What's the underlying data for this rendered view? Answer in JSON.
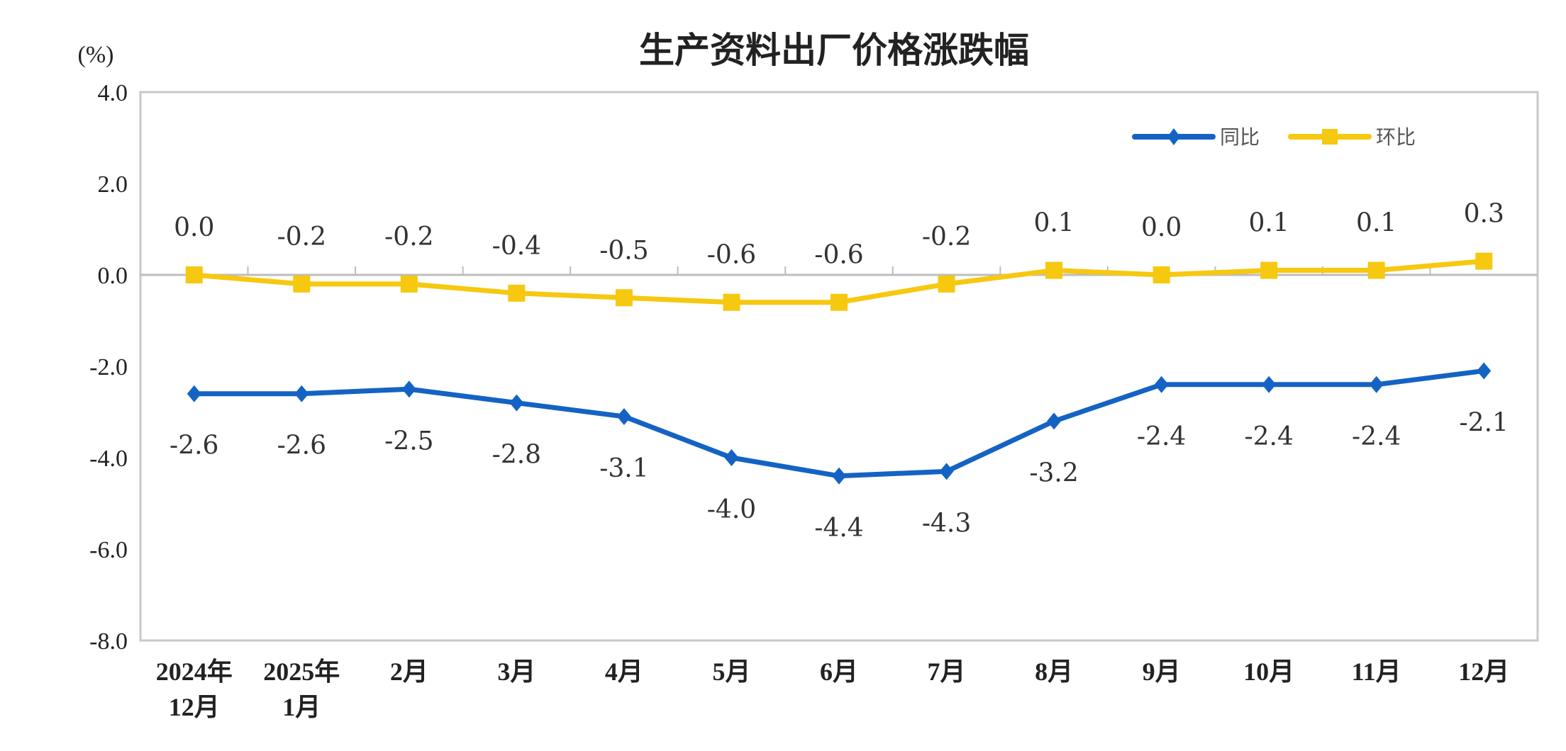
{
  "chart_data": {
    "type": "line",
    "title": "生产资料出厂价格涨跌幅",
    "ylabel": "(%)",
    "ylim": [
      -8.0,
      4.0
    ],
    "yticks": [
      "4.0",
      "2.0",
      "0.0",
      "-2.0",
      "-4.0",
      "-6.0",
      "-8.0"
    ],
    "ytick_values": [
      4,
      2,
      0,
      -2,
      -4,
      -6,
      -8
    ],
    "categories": [
      [
        "2024年",
        "12月"
      ],
      [
        "2025年",
        "1月"
      ],
      [
        "2月"
      ],
      [
        "3月"
      ],
      [
        "4月"
      ],
      [
        "5月"
      ],
      [
        "6月"
      ],
      [
        "7月"
      ],
      [
        "8月"
      ],
      [
        "9月"
      ],
      [
        "10月"
      ],
      [
        "11月"
      ],
      [
        "12月"
      ]
    ],
    "grid": false,
    "legend_position": "top-right",
    "series": [
      {
        "name": "同比",
        "color": "#1463c4",
        "marker": "diamond",
        "values": [
          -2.6,
          -2.6,
          -2.5,
          -2.8,
          -3.1,
          -4.0,
          -4.4,
          -4.3,
          -3.2,
          -2.4,
          -2.4,
          -2.4,
          -2.1
        ],
        "labels": [
          "-2.6",
          "-2.6",
          "-2.5",
          "-2.8",
          "-3.1",
          "-4.0",
          "-4.4",
          "-4.3",
          "-3.2",
          "-2.4",
          "-2.4",
          "-2.4",
          "-2.1"
        ]
      },
      {
        "name": "环比",
        "color": "#f6c80f",
        "marker": "square",
        "values": [
          0.0,
          -0.2,
          -0.2,
          -0.4,
          -0.5,
          -0.6,
          -0.6,
          -0.2,
          0.1,
          0.0,
          0.1,
          0.1,
          0.3
        ],
        "labels": [
          "0.0",
          "-0.2",
          "-0.2",
          "-0.4",
          "-0.5",
          "-0.6",
          "-0.6",
          "-0.2",
          "0.1",
          "0.0",
          "0.1",
          "0.1",
          "0.3"
        ]
      }
    ]
  }
}
